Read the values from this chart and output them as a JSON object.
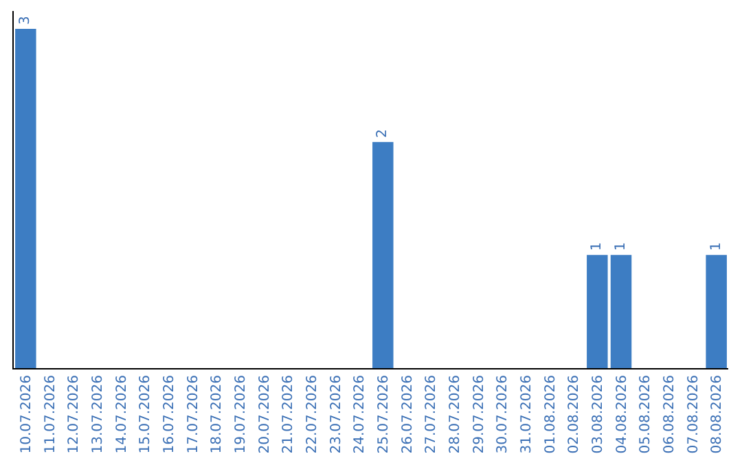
{
  "chart_data": {
    "type": "bar",
    "categories": [
      "10.07.2026",
      "11.07.2026",
      "12.07.2026",
      "13.07.2026",
      "14.07.2026",
      "15.07.2026",
      "16.07.2026",
      "17.07.2026",
      "18.07.2026",
      "19.07.2026",
      "20.07.2026",
      "21.07.2026",
      "22.07.2026",
      "23.07.2026",
      "24.07.2026",
      "25.07.2026",
      "26.07.2026",
      "27.07.2026",
      "28.07.2026",
      "29.07.2026",
      "30.07.2026",
      "31.07.2026",
      "01.08.2026",
      "02.08.2026",
      "03.08.2026",
      "04.08.2026",
      "05.08.2026",
      "06.08.2026",
      "07.08.2026",
      "08.08.2026"
    ],
    "values": [
      3,
      0,
      0,
      0,
      0,
      0,
      0,
      0,
      0,
      0,
      0,
      0,
      0,
      0,
      0,
      2,
      0,
      0,
      0,
      0,
      0,
      0,
      0,
      0,
      1,
      1,
      0,
      0,
      0,
      1
    ],
    "value_labels": [
      "3",
      null,
      null,
      null,
      null,
      null,
      null,
      null,
      null,
      null,
      null,
      null,
      null,
      null,
      null,
      "2",
      null,
      null,
      null,
      null,
      null,
      null,
      null,
      null,
      "1",
      "1",
      null,
      null,
      null,
      "1"
    ],
    "color": "#3d7dc3",
    "tick_labels": "x",
    "legend": false
  }
}
